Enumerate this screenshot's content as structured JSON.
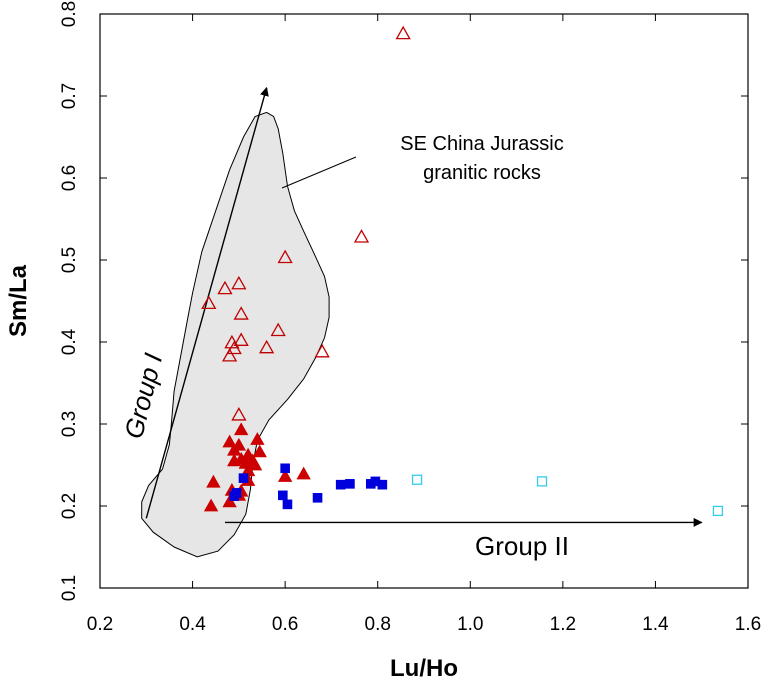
{
  "chart_data": {
    "type": "scatter",
    "xlabel": "Lu/Ho",
    "ylabel": "Sm/La",
    "xlim": [
      0.2,
      1.6
    ],
    "ylim": [
      0.1,
      0.8
    ],
    "xticks": [
      "0.2",
      "0.4",
      "0.6",
      "0.8",
      "1.0",
      "1.2",
      "1.4",
      "1.6"
    ],
    "yticks": [
      "0.1",
      "0.2",
      "0.3",
      "0.4",
      "0.5",
      "0.6",
      "0.7",
      "0.8"
    ],
    "grid": false,
    "legend": "none",
    "series": [
      {
        "marker": "triangle-open",
        "color": "#c00000",
        "points": [
          [
            0.855,
            0.776
          ],
          [
            0.765,
            0.528
          ],
          [
            0.6,
            0.503
          ],
          [
            0.5,
            0.471
          ],
          [
            0.47,
            0.465
          ],
          [
            0.435,
            0.447
          ],
          [
            0.505,
            0.434
          ],
          [
            0.585,
            0.414
          ],
          [
            0.505,
            0.402
          ],
          [
            0.485,
            0.399
          ],
          [
            0.49,
            0.392
          ],
          [
            0.56,
            0.393
          ],
          [
            0.68,
            0.388
          ],
          [
            0.48,
            0.383
          ],
          [
            0.5,
            0.311
          ]
        ]
      },
      {
        "marker": "triangle-filled",
        "color": "#cc0000",
        "points": [
          [
            0.48,
            0.278
          ],
          [
            0.5,
            0.274
          ],
          [
            0.54,
            0.281
          ],
          [
            0.505,
            0.293
          ],
          [
            0.49,
            0.268
          ],
          [
            0.52,
            0.262
          ],
          [
            0.53,
            0.255
          ],
          [
            0.545,
            0.266
          ],
          [
            0.505,
            0.257
          ],
          [
            0.535,
            0.25
          ],
          [
            0.515,
            0.252
          ],
          [
            0.49,
            0.255
          ],
          [
            0.52,
            0.243
          ],
          [
            0.64,
            0.239
          ],
          [
            0.6,
            0.236
          ],
          [
            0.445,
            0.229
          ],
          [
            0.52,
            0.231
          ],
          [
            0.485,
            0.219
          ],
          [
            0.505,
            0.218
          ],
          [
            0.48,
            0.205
          ],
          [
            0.44,
            0.2
          ],
          [
            0.5,
            0.213
          ]
        ]
      },
      {
        "marker": "square-filled",
        "color": "#0000dd",
        "points": [
          [
            0.6,
            0.246
          ],
          [
            0.51,
            0.234
          ],
          [
            0.72,
            0.226
          ],
          [
            0.74,
            0.227
          ],
          [
            0.785,
            0.227
          ],
          [
            0.795,
            0.23
          ],
          [
            0.81,
            0.226
          ],
          [
            0.595,
            0.213
          ],
          [
            0.67,
            0.21
          ],
          [
            0.605,
            0.202
          ],
          [
            0.495,
            0.216
          ],
          [
            0.49,
            0.212
          ]
        ]
      },
      {
        "marker": "square-open",
        "color": "#33ccee",
        "points": [
          [
            0.885,
            0.232
          ],
          [
            1.155,
            0.23
          ],
          [
            1.535,
            0.194
          ]
        ]
      }
    ],
    "field": {
      "label": "SE China Jurassic granitic rocks",
      "label_lines": [
        "SE China Jurassic",
        "granitic rocks"
      ],
      "fill": "#e6e6e6",
      "outline_data": [
        [
          0.56,
          0.68
        ],
        [
          0.575,
          0.675
        ],
        [
          0.585,
          0.66
        ],
        [
          0.595,
          0.63
        ],
        [
          0.605,
          0.59
        ],
        [
          0.62,
          0.56
        ],
        [
          0.64,
          0.535
        ],
        [
          0.665,
          0.505
        ],
        [
          0.685,
          0.48
        ],
        [
          0.695,
          0.455
        ],
        [
          0.695,
          0.43
        ],
        [
          0.685,
          0.405
        ],
        [
          0.665,
          0.38
        ],
        [
          0.64,
          0.355
        ],
        [
          0.605,
          0.33
        ],
        [
          0.565,
          0.305
        ],
        [
          0.54,
          0.28
        ],
        [
          0.53,
          0.25
        ],
        [
          0.525,
          0.22
        ],
        [
          0.515,
          0.19
        ],
        [
          0.49,
          0.165
        ],
        [
          0.455,
          0.145
        ],
        [
          0.41,
          0.138
        ],
        [
          0.36,
          0.15
        ],
        [
          0.315,
          0.168
        ],
        [
          0.29,
          0.185
        ],
        [
          0.29,
          0.205
        ],
        [
          0.305,
          0.225
        ],
        [
          0.335,
          0.245
        ],
        [
          0.35,
          0.275
        ],
        [
          0.355,
          0.305
        ],
        [
          0.36,
          0.34
        ],
        [
          0.37,
          0.37
        ],
        [
          0.38,
          0.4
        ],
        [
          0.39,
          0.43
        ],
        [
          0.4,
          0.46
        ],
        [
          0.42,
          0.51
        ],
        [
          0.45,
          0.56
        ],
        [
          0.48,
          0.61
        ],
        [
          0.51,
          0.65
        ],
        [
          0.535,
          0.675
        ]
      ]
    },
    "annotations": [
      {
        "text": "Group I",
        "arrow_from": [
          0.3,
          0.185
        ],
        "arrow_to": [
          0.56,
          0.71
        ]
      },
      {
        "text": "Group II",
        "arrow_from": [
          0.47,
          0.18
        ],
        "arrow_to": [
          1.5,
          0.18
        ]
      }
    ]
  }
}
